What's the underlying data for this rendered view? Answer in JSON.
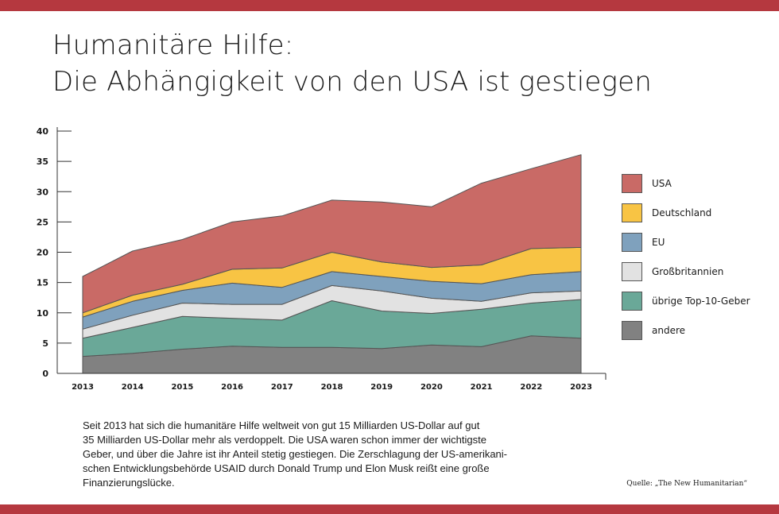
{
  "colors": {
    "frame": "#b5383f",
    "series": {
      "USA": "#c96a66",
      "Deutschland": "#f8c444",
      "EU": "#7fa1bd",
      "Großbritannien": "#e2e2e2",
      "übrige Top-10-Geber": "#6aa898",
      "andere": "#818181"
    }
  },
  "title_lines": [
    "Humanitäre Hilfe:",
    "Die Abhängigkeit von den USA ist gestiegen"
  ],
  "caption_lines": [
    "Seit 2013 hat sich die humanitäre Hilfe weltweit von gut 15 Milliarden US-Dollar auf gut",
    "35 Milliarden US-Dollar mehr als verdoppelt. Die USA waren schon immer der wichtigste",
    "Geber, und über die Jahre ist ihr Anteil stetig gestiegen. Die Zerschlagung der US-amerikani-",
    "schen Entwicklungsbehörde USAID durch Donald Trump und Elon Musk reißt eine große",
    "Finanzierungslücke."
  ],
  "source": "Quelle: „The New Humanitarian“",
  "chart_data": {
    "type": "area",
    "stacked": true,
    "title": "",
    "xlabel": "",
    "ylabel": "",
    "x": [
      "2013",
      "2014",
      "2015",
      "2016",
      "2017",
      "2018",
      "2019",
      "2020",
      "2021",
      "2022",
      "2023"
    ],
    "ylim": [
      0,
      40
    ],
    "yticks": [
      0,
      5,
      10,
      15,
      20,
      25,
      30,
      35,
      40
    ],
    "legend_position": "right",
    "grid": false,
    "series": [
      {
        "name": "andere",
        "values": [
          2.8,
          3.3,
          4.0,
          4.5,
          4.3,
          4.3,
          4.1,
          4.7,
          4.4,
          6.2,
          5.8
        ]
      },
      {
        "name": "übrige Top-10-Geber",
        "values": [
          3.0,
          4.3,
          5.4,
          4.6,
          4.5,
          7.7,
          6.2,
          5.2,
          6.2,
          5.4,
          6.4
        ]
      },
      {
        "name": "Großbritannien",
        "values": [
          1.5,
          2.0,
          2.2,
          2.3,
          2.6,
          2.5,
          3.3,
          2.5,
          1.3,
          1.7,
          1.4
        ]
      },
      {
        "name": "EU",
        "values": [
          2.0,
          2.3,
          2.1,
          3.5,
          2.8,
          2.3,
          2.4,
          2.8,
          2.9,
          3.0,
          3.2
        ]
      },
      {
        "name": "Deutschland",
        "values": [
          0.7,
          1.0,
          1.0,
          2.3,
          3.2,
          3.2,
          2.4,
          2.3,
          3.1,
          4.3,
          4.0
        ]
      },
      {
        "name": "USA",
        "values": [
          6.0,
          7.3,
          7.4,
          7.8,
          8.6,
          8.6,
          9.9,
          10.0,
          13.5,
          13.2,
          15.3
        ]
      }
    ]
  }
}
